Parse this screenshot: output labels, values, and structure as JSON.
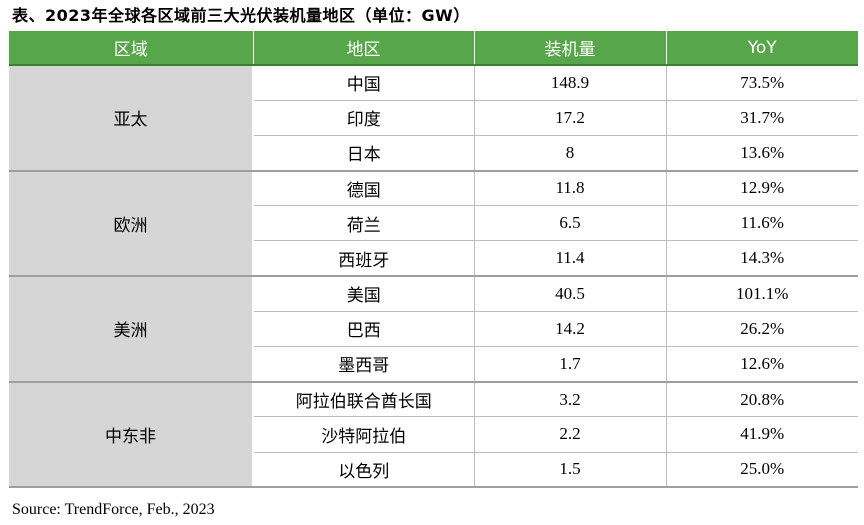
{
  "caption": "表、2023年全球各区域前三大光伏装机量地区（单位：GW）",
  "table": {
    "headers": [
      "区域",
      "地区",
      "装机量",
      "YoY"
    ],
    "groups": [
      {
        "region": "亚太",
        "rows": [
          {
            "country": "中国",
            "capacity": "148.9",
            "yoy": "73.5%"
          },
          {
            "country": "印度",
            "capacity": "17.2",
            "yoy": "31.7%"
          },
          {
            "country": "日本",
            "capacity": "8",
            "yoy": "13.6%"
          }
        ]
      },
      {
        "region": "欧洲",
        "rows": [
          {
            "country": "德国",
            "capacity": "11.8",
            "yoy": "12.9%"
          },
          {
            "country": "荷兰",
            "capacity": "6.5",
            "yoy": "11.6%"
          },
          {
            "country": "西班牙",
            "capacity": "11.4",
            "yoy": "14.3%"
          }
        ]
      },
      {
        "region": "美洲",
        "rows": [
          {
            "country": "美国",
            "capacity": "40.5",
            "yoy": "101.1%"
          },
          {
            "country": "巴西",
            "capacity": "14.2",
            "yoy": "26.2%"
          },
          {
            "country": "墨西哥",
            "capacity": "1.7",
            "yoy": "12.6%"
          }
        ]
      },
      {
        "region": "中东非",
        "rows": [
          {
            "country": "阿拉伯联合酋长国",
            "capacity": "3.2",
            "yoy": "20.8%"
          },
          {
            "country": "沙特阿拉伯",
            "capacity": "2.2",
            "yoy": "41.9%"
          },
          {
            "country": "以色列",
            "capacity": "1.5",
            "yoy": "25.0%"
          }
        ]
      }
    ]
  },
  "source": "Source: TrendForce, Feb., 2023",
  "colors": {
    "header_bg": "#57a64a",
    "header_text": "#ffffff",
    "region_bg": "#d6d6d6"
  }
}
